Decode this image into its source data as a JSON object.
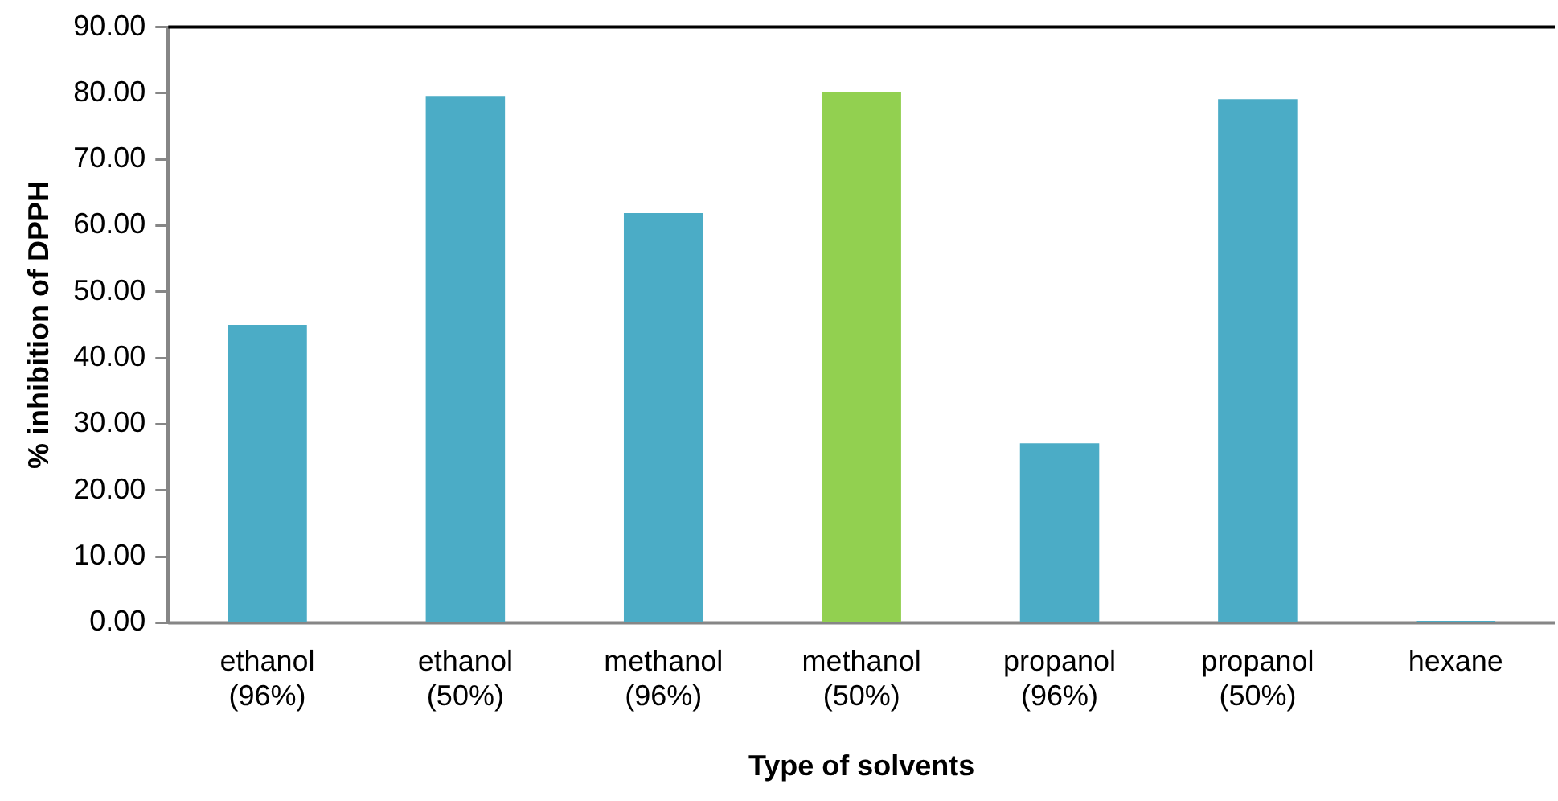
{
  "chart_data": {
    "type": "bar",
    "xlabel": "Type of solvents",
    "ylabel": "% inhibition of DPPH",
    "categories": [
      "ethanol (96%)",
      "ethanol (50%)",
      "methanol (96%)",
      "methanol (50%)",
      "propanol (96%)",
      "propanol (50%)",
      "hexane"
    ],
    "values": [
      45,
      79.6,
      61.9,
      80.1,
      27.1,
      79.1,
      0.3
    ],
    "colors": [
      "#4bacc6",
      "#4bacc6",
      "#4bacc6",
      "#92d050",
      "#4bacc6",
      "#4bacc6",
      "#4bacc6"
    ],
    "ylim": [
      0,
      90
    ],
    "yticks": [
      {
        "value": 0,
        "label": "0.00"
      },
      {
        "value": 10,
        "label": "10.00"
      },
      {
        "value": 20,
        "label": "20.00"
      },
      {
        "value": 30,
        "label": "30.00"
      },
      {
        "value": 40,
        "label": "40.00"
      },
      {
        "value": 50,
        "label": "50.00"
      },
      {
        "value": 60,
        "label": "60.00"
      },
      {
        "value": 70,
        "label": "70.00"
      },
      {
        "value": 80,
        "label": "80.00"
      },
      {
        "value": 90,
        "label": "90.00"
      }
    ],
    "grid": false,
    "legend": false
  }
}
